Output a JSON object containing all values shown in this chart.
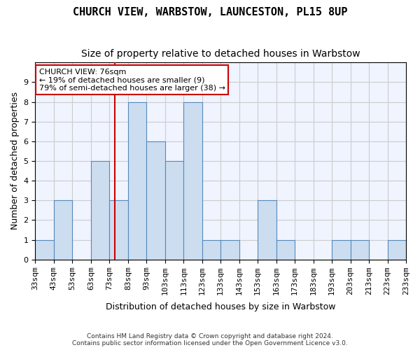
{
  "title": "CHURCH VIEW, WARBSTOW, LAUNCESTON, PL15 8UP",
  "subtitle": "Size of property relative to detached houses in Warbstow",
  "xlabel": "Distribution of detached houses by size in Warbstow",
  "ylabel": "Number of detached properties",
  "annotation_title": "CHURCH VIEW: 76sqm",
  "annotation_line1": "← 19% of detached houses are smaller (9)",
  "annotation_line2": "79% of semi-detached houses are larger (38) →",
  "footer_line1": "Contains HM Land Registry data © Crown copyright and database right 2024.",
  "footer_line2": "Contains public sector information licensed under the Open Government Licence v3.0.",
  "bins": [
    33,
    43,
    53,
    63,
    73,
    83,
    93,
    103,
    113,
    123,
    133,
    143,
    153,
    163,
    173,
    183,
    193,
    203,
    213,
    223,
    233
  ],
  "bin_labels": [
    "33sqm",
    "43sqm",
    "53sqm",
    "63sqm",
    "73sqm",
    "83sqm",
    "93sqm",
    "103sqm",
    "113sqm",
    "123sqm",
    "133sqm",
    "143sqm",
    "153sqm",
    "163sqm",
    "173sqm",
    "183sqm",
    "193sqm",
    "203sqm",
    "213sqm",
    "223sqm",
    "233sqm"
  ],
  "values": [
    1,
    3,
    0,
    5,
    3,
    8,
    6,
    5,
    8,
    1,
    1,
    0,
    3,
    1,
    0,
    0,
    1,
    1,
    0,
    1
  ],
  "bar_color": "#ccddf0",
  "bar_edge_color": "#5588bb",
  "vline_x": 76,
  "vline_color": "#cc0000",
  "annotation_box_edge": "#cc0000",
  "annotation_box_fill": "white",
  "ylim": [
    0,
    10
  ],
  "yticks": [
    0,
    1,
    2,
    3,
    4,
    5,
    6,
    7,
    8,
    9,
    10
  ],
  "grid_color": "#cccccc",
  "background_color": "#f0f4ff",
  "title_fontsize": 11,
  "subtitle_fontsize": 10,
  "axis_label_fontsize": 9,
  "tick_fontsize": 8
}
